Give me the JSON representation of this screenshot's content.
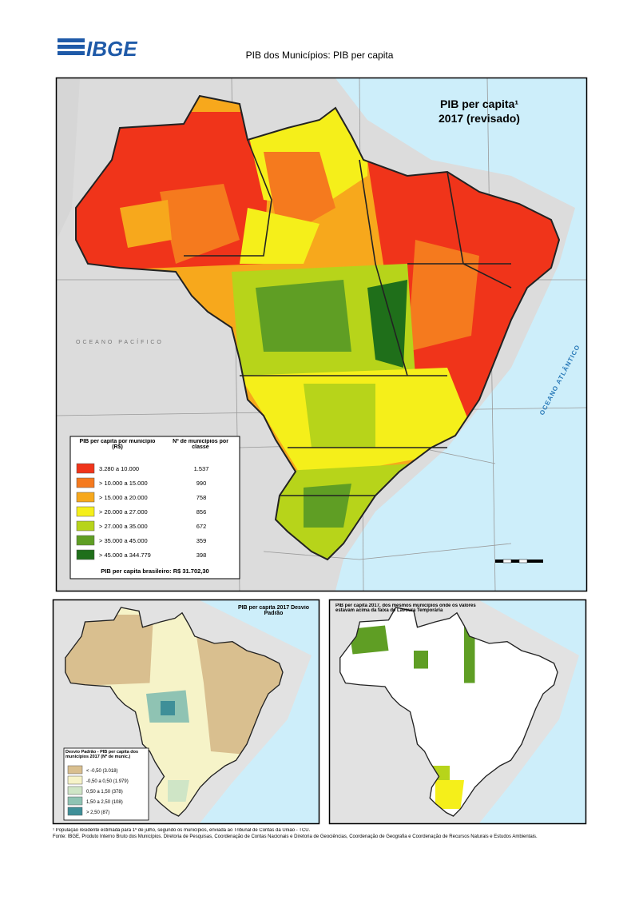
{
  "header": {
    "logo": "IBGE",
    "title": "PIB dos Municípios: PIB per capita"
  },
  "main_map": {
    "title": "PIB per capita¹",
    "subtitle": "2017 (revisado)",
    "ocean_label": "OCEANO ATLÂNTICO",
    "pacific_label": "OCEANO PACÍFICO",
    "legend": {
      "header_value": "PIB per capita por município (R$)",
      "header_count": "Nº de municípios por classe",
      "classes": [
        {
          "label": "3.280 a 10.000",
          "count": "1.537",
          "color": "#f0341a"
        },
        {
          "label": "> 10.000 a 15.000",
          "count": "990",
          "color": "#f57a1e"
        },
        {
          "label": "> 15.000 a 20.000",
          "count": "758",
          "color": "#f7a81c"
        },
        {
          "label": "> 20.000 a 27.000",
          "count": "856",
          "color": "#f5ef1a"
        },
        {
          "label": "> 27.000 a 35.000",
          "count": "672",
          "color": "#b7d41a"
        },
        {
          "label": "> 35.000 a 45.000",
          "count": "359",
          "color": "#5f9e24"
        },
        {
          "label": "> 45.000 a 344.779",
          "count": "398",
          "color": "#1f6f1a"
        }
      ],
      "note": "PIB per capita brasileiro: R$ 31.702,30"
    }
  },
  "inset_left": {
    "title": "PIB per capita 2017 Desvio Padrão",
    "legend_title": "Desvio Padrão - PIB per capita dos municípios 2017 (Nº de munic.)",
    "classes": [
      {
        "label": "< -0,50 (3.018)",
        "color": "#d9bf8f"
      },
      {
        "label": "-0,50 a 0,50 (1.979)",
        "color": "#f6f3c8"
      },
      {
        "label": "0,50 a 1,50 (378)",
        "color": "#cfe5c6"
      },
      {
        "label": "1,50 a 2,50 (108)",
        "color": "#8fc3b3"
      },
      {
        "label": "> 2,50 (87)",
        "color": "#3f8f98"
      }
    ]
  },
  "inset_right": {
    "title": "PIB per capita 2017, dos mesmos municípios onde os valores estavam acima da faixa de Lavoura Temporária"
  },
  "footnotes": [
    "¹ População residente estimada para 1º de julho, segundo os municípios, enviada ao Tribunal de Contas da União - TCU.",
    "Fonte: IBGE, Produto Interno Bruto dos Municípios. Diretoria de Pesquisas, Coordenação de Contas Nacionais e Diretoria de Geociências, Coordenação de Geografia e Coordenação de Recursos Naturais e Estudos Ambientais."
  ]
}
